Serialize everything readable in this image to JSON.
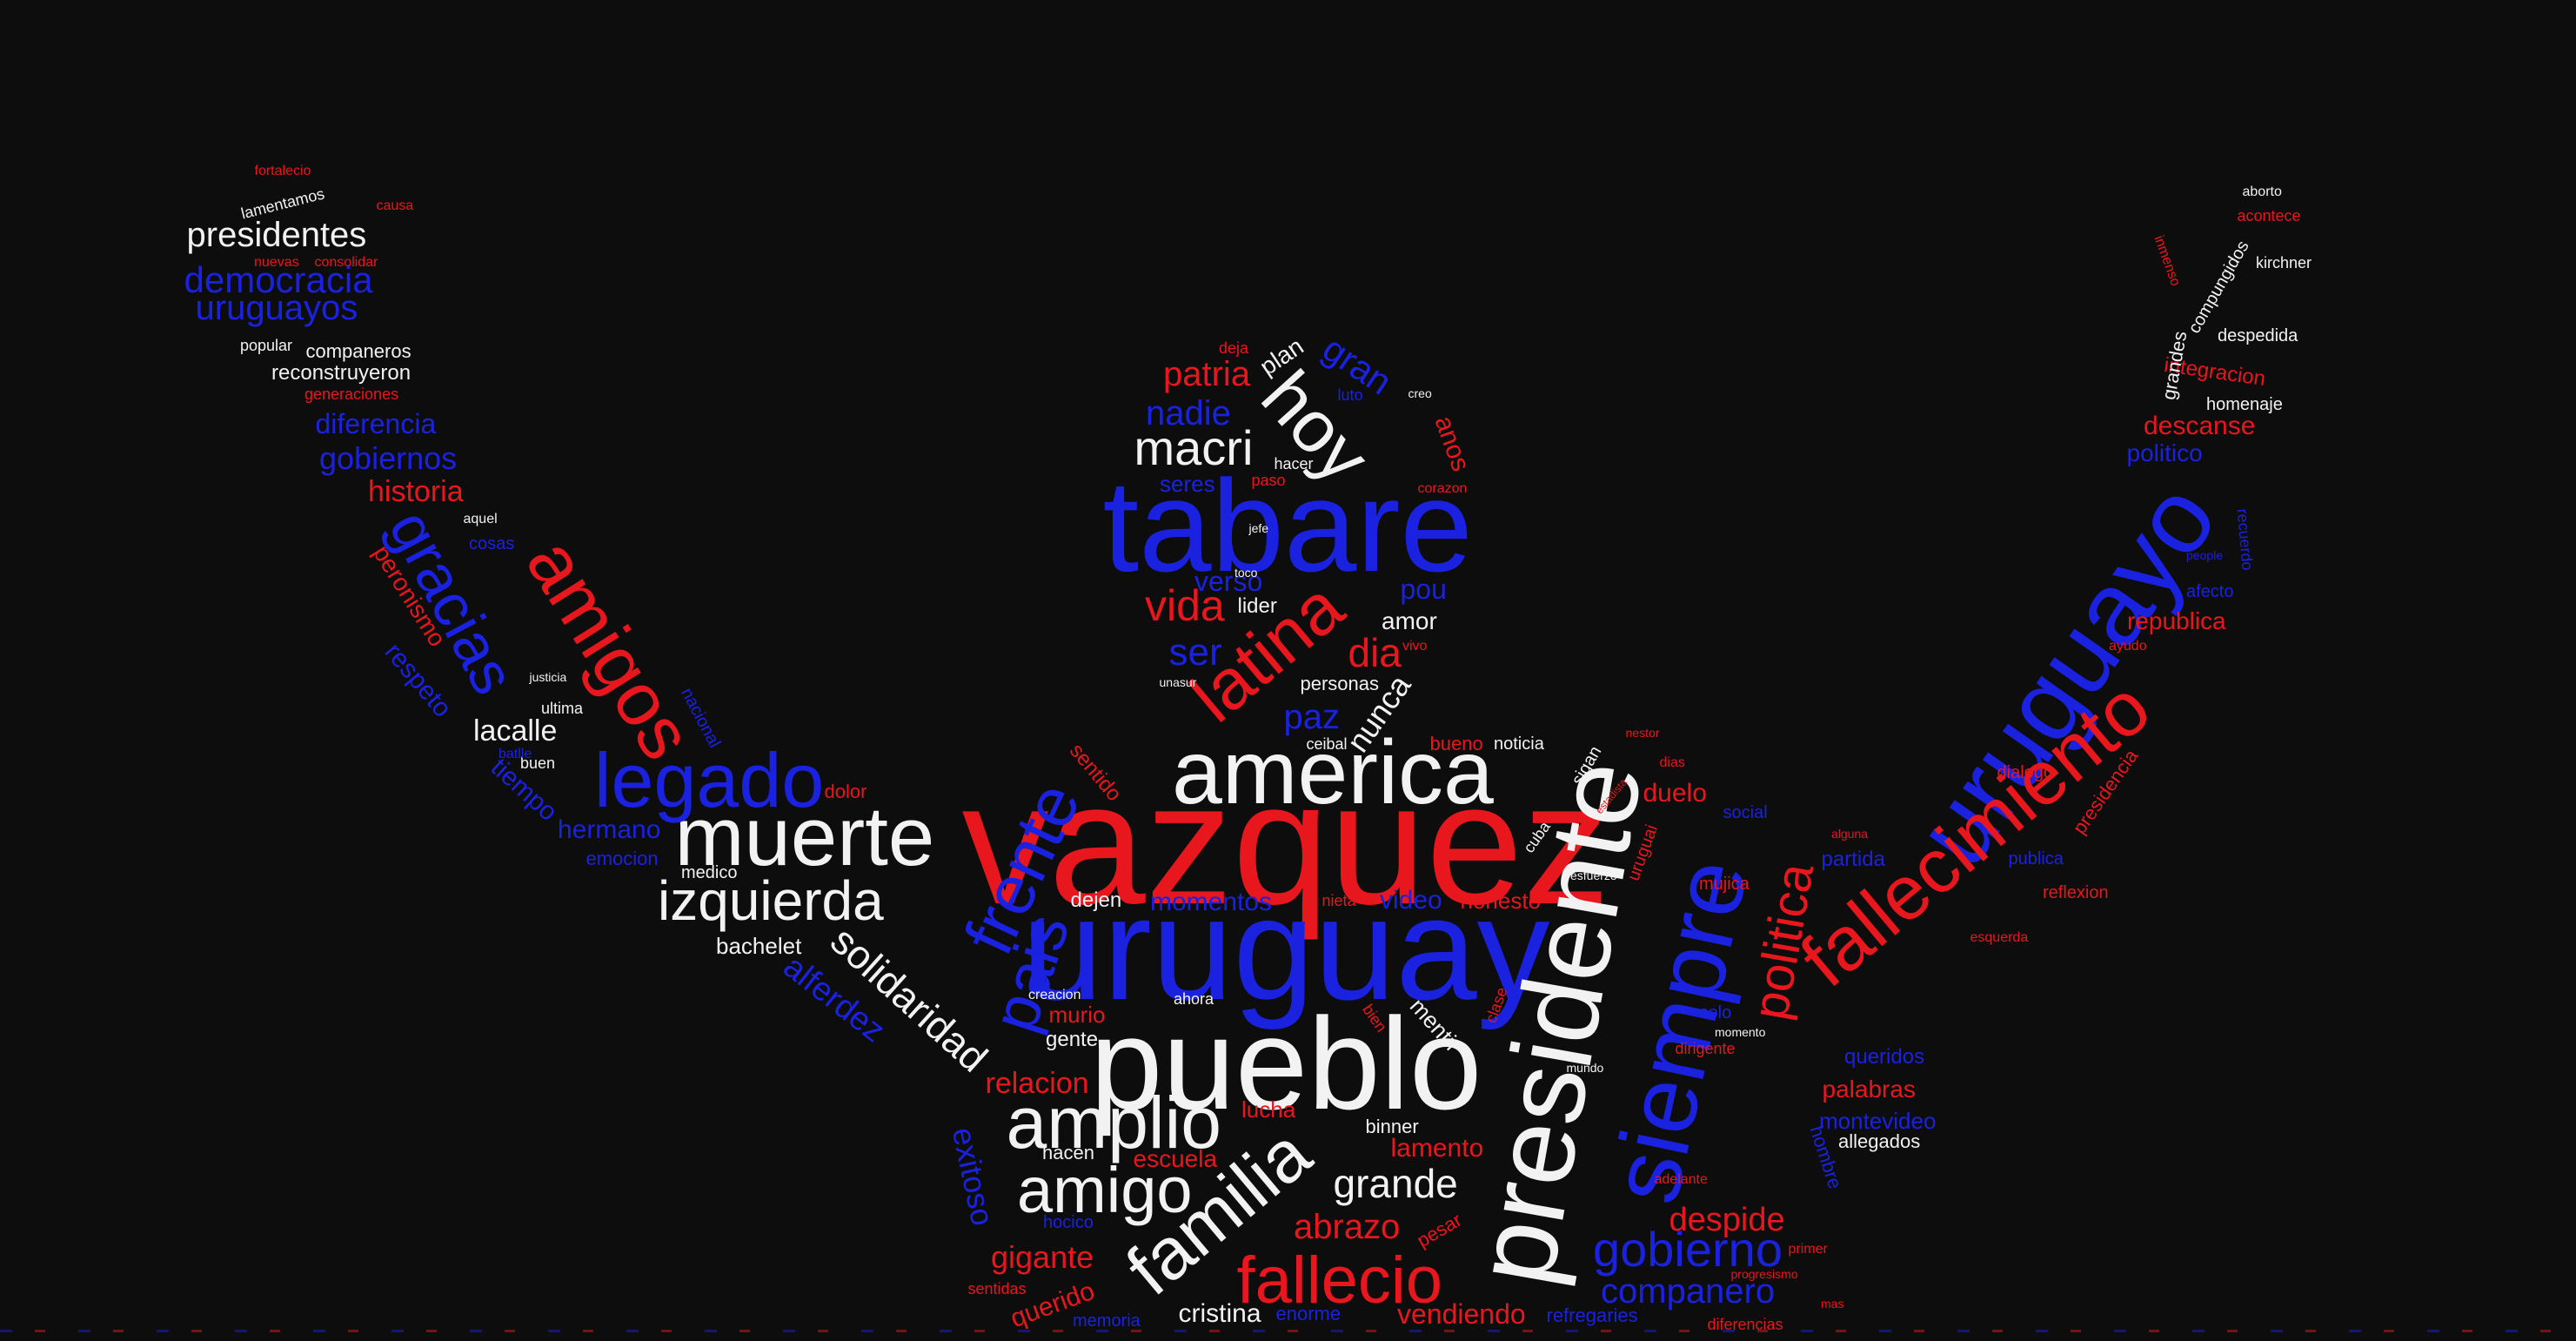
{
  "colors": {
    "background": "#0d0d0d",
    "red": "#e8171d",
    "blue": "#1a22e0",
    "white": "#f2f2f2"
  },
  "words": [
    {
      "id": "vazquez",
      "text": "vazquez",
      "color": "red"
    },
    {
      "id": "uruguay",
      "text": "uruguay",
      "color": "blue"
    },
    {
      "id": "tabare",
      "text": "tabare",
      "color": "blue"
    },
    {
      "id": "america",
      "text": "america",
      "color": "white"
    },
    {
      "id": "pueblo",
      "text": "pueblo",
      "color": "white"
    },
    {
      "id": "presidente",
      "text": "presidente",
      "color": "white"
    },
    {
      "id": "uruguayo",
      "text": "uruguayo",
      "color": "blue"
    },
    {
      "id": "siempre",
      "text": "siempre",
      "color": "blue"
    },
    {
      "id": "fallecimiento",
      "text": "fallecimiento",
      "color": "red"
    },
    {
      "id": "muerte",
      "text": "muerte",
      "color": "white"
    },
    {
      "id": "legado",
      "text": "legado",
      "color": "blue"
    },
    {
      "id": "amigos",
      "text": "amigos",
      "color": "red"
    },
    {
      "id": "gracias",
      "text": "gracias",
      "color": "blue"
    },
    {
      "id": "izquierda",
      "text": "izquierda",
      "color": "white"
    },
    {
      "id": "frente",
      "text": "frente",
      "color": "blue"
    },
    {
      "id": "pais",
      "text": "pais",
      "color": "blue"
    },
    {
      "id": "amplio",
      "text": "amplio",
      "color": "white"
    },
    {
      "id": "familia",
      "text": "familia",
      "color": "white"
    },
    {
      "id": "amigo",
      "text": "amigo",
      "color": "white"
    },
    {
      "id": "fallecio",
      "text": "fallecio",
      "color": "red"
    },
    {
      "id": "latina",
      "text": "latina",
      "color": "red"
    },
    {
      "id": "hoy",
      "text": "hoy",
      "color": "white"
    },
    {
      "id": "macri",
      "text": "macri",
      "color": "white"
    },
    {
      "id": "politica",
      "text": "politica",
      "color": "red"
    },
    {
      "id": "gobierno",
      "text": "gobierno",
      "color": "blue"
    },
    {
      "id": "solidaridad",
      "text": "solidaridad",
      "color": "white"
    },
    {
      "id": "presidentes",
      "text": "presidentes",
      "color": "white"
    },
    {
      "id": "democracia",
      "text": "democracia",
      "color": "blue"
    },
    {
      "id": "uruguayos",
      "text": "uruguayos",
      "color": "blue"
    },
    {
      "id": "diferencia",
      "text": "diferencia",
      "color": "blue"
    },
    {
      "id": "gobiernos",
      "text": "gobiernos",
      "color": "blue"
    },
    {
      "id": "historia",
      "text": "historia",
      "color": "red"
    },
    {
      "id": "peronismo",
      "text": "peronismo",
      "color": "red"
    },
    {
      "id": "respeto",
      "text": "respeto",
      "color": "blue"
    },
    {
      "id": "lacalle",
      "text": "lacalle",
      "color": "white"
    },
    {
      "id": "tiempo",
      "text": "tiempo",
      "color": "blue"
    },
    {
      "id": "hermano",
      "text": "hermano",
      "color": "blue"
    },
    {
      "id": "bachelet",
      "text": "bachelet",
      "color": "white"
    },
    {
      "id": "alferdez",
      "text": "alferdez",
      "color": "blue"
    },
    {
      "id": "grande",
      "text": "grande",
      "color": "white"
    },
    {
      "id": "abrazo",
      "text": "abrazo",
      "color": "red"
    },
    {
      "id": "despide",
      "text": "despide",
      "color": "red"
    },
    {
      "id": "companero",
      "text": "companero",
      "color": "blue"
    },
    {
      "id": "vida",
      "text": "vida",
      "color": "red"
    },
    {
      "id": "patria",
      "text": "patria",
      "color": "red"
    },
    {
      "id": "nadie",
      "text": "nadie",
      "color": "blue"
    },
    {
      "id": "gran",
      "text": "gran",
      "color": "blue"
    },
    {
      "id": "dia",
      "text": "dia",
      "color": "red"
    },
    {
      "id": "paz",
      "text": "paz",
      "color": "blue"
    },
    {
      "id": "ser",
      "text": "ser",
      "color": "blue"
    },
    {
      "id": "verso",
      "text": "verso",
      "color": "blue"
    },
    {
      "id": "amor",
      "text": "amor",
      "color": "white"
    },
    {
      "id": "pou",
      "text": "pou",
      "color": "blue"
    },
    {
      "id": "nunca",
      "text": "nunca",
      "color": "white"
    },
    {
      "id": "cristina",
      "text": "cristina",
      "color": "white"
    },
    {
      "id": "vendiendo",
      "text": "vendiendo",
      "color": "red"
    },
    {
      "id": "refregaries",
      "text": "refregaries",
      "color": "blue"
    },
    {
      "id": "diferencias",
      "text": "diferencias",
      "color": "red"
    },
    {
      "id": "queridos",
      "text": "queridos",
      "color": "blue"
    },
    {
      "id": "palabras",
      "text": "palabras",
      "color": "red"
    },
    {
      "id": "montevideo",
      "text": "montevideo",
      "color": "blue"
    },
    {
      "id": "allegados",
      "text": "allegados",
      "color": "white"
    },
    {
      "id": "gigante",
      "text": "gigante",
      "color": "red"
    },
    {
      "id": "relacion",
      "text": "relacion",
      "color": "red"
    },
    {
      "id": "gente",
      "text": "gente",
      "color": "white"
    },
    {
      "id": "dejen",
      "text": "dejen",
      "color": "white"
    },
    {
      "id": "momentos",
      "text": "momentos",
      "color": "blue"
    },
    {
      "id": "video",
      "text": "video",
      "color": "blue"
    },
    {
      "id": "honesto",
      "text": "honesto",
      "color": "red"
    },
    {
      "id": "lamento",
      "text": "lamento",
      "color": "red"
    },
    {
      "id": "escuela",
      "text": "escuela",
      "color": "red"
    },
    {
      "id": "querido",
      "text": "querido",
      "color": "red"
    },
    {
      "id": "duelo",
      "text": "duelo",
      "color": "red"
    },
    {
      "id": "republica",
      "text": "republica",
      "color": "red"
    },
    {
      "id": "descanse",
      "text": "descanse",
      "color": "red"
    },
    {
      "id": "integracion",
      "text": "integracion",
      "color": "red"
    },
    {
      "id": "despedida",
      "text": "despedida",
      "color": "white"
    },
    {
      "id": "homenaje",
      "text": "homenaje",
      "color": "white"
    },
    {
      "id": "grandes",
      "text": "grandes",
      "color": "white"
    },
    {
      "id": "compungidos",
      "text": "compungidos",
      "color": "white"
    },
    {
      "id": "kirchner",
      "text": "kirchner",
      "color": "white"
    },
    {
      "id": "aborto",
      "text": "aborto",
      "color": "white"
    },
    {
      "id": "acontece",
      "text": "acontece",
      "color": "red"
    },
    {
      "id": "exitoso",
      "text": "exitoso",
      "color": "blue"
    },
    {
      "id": "hacen",
      "text": "hacen",
      "color": "white"
    },
    {
      "id": "murio",
      "text": "murio",
      "color": "red"
    },
    {
      "id": "mentir",
      "text": "mentir",
      "color": "white"
    },
    {
      "id": "lucha",
      "text": "lucha",
      "color": "red"
    },
    {
      "id": "binner",
      "text": "binner",
      "color": "white"
    },
    {
      "id": "personas",
      "text": "personas",
      "color": "white"
    },
    {
      "id": "lider",
      "text": "lider",
      "color": "white"
    },
    {
      "id": "seres",
      "text": "seres",
      "color": "blue"
    },
    {
      "id": "plan",
      "text": "plan",
      "color": "white"
    },
    {
      "id": "dolor",
      "text": "dolor",
      "color": "red"
    },
    {
      "id": "emocion",
      "text": "emocion",
      "color": "blue"
    },
    {
      "id": "medico",
      "text": "medico",
      "color": "white"
    },
    {
      "id": "reconstruyeron",
      "text": "reconstruyeron",
      "color": "white"
    },
    {
      "id": "companeros",
      "text": "companeros",
      "color": "white"
    },
    {
      "id": "popular",
      "text": "popular",
      "color": "white"
    },
    {
      "id": "lamentamos",
      "text": "lamentamos",
      "color": "white"
    },
    {
      "id": "fortalecio",
      "text": "fortalecio",
      "color": "red"
    },
    {
      "id": "cosas",
      "text": "cosas",
      "color": "blue"
    },
    {
      "id": "sentido",
      "text": "sentido",
      "color": "red"
    },
    {
      "id": "partida",
      "text": "partida",
      "color": "blue"
    },
    {
      "id": "reflexion",
      "text": "reflexion",
      "color": "red"
    },
    {
      "id": "publica",
      "text": "publica",
      "color": "blue"
    },
    {
      "id": "presidencia",
      "text": "presidencia",
      "color": "red"
    },
    {
      "id": "dialogo",
      "text": "dialogo",
      "color": "red"
    },
    {
      "id": "afecto",
      "text": "afecto",
      "color": "blue"
    },
    {
      "id": "social",
      "text": "social",
      "color": "blue"
    },
    {
      "id": "mujica",
      "text": "mujica",
      "color": "red"
    },
    {
      "id": "memoria",
      "text": "memoria",
      "color": "blue"
    },
    {
      "id": "pesar",
      "text": "pesar",
      "color": "red"
    },
    {
      "id": "dirigente",
      "text": "dirigente",
      "color": "red"
    },
    {
      "id": "bueno",
      "text": "bueno",
      "color": "red"
    },
    {
      "id": "noticia",
      "text": "noticia",
      "color": "white"
    },
    {
      "id": "buen",
      "text": "buen",
      "color": "white"
    },
    {
      "id": "ultima",
      "text": "ultima",
      "color": "white"
    },
    {
      "id": "aquel",
      "text": "aquel",
      "color": "white"
    },
    {
      "id": "causa",
      "text": "causa",
      "color": "red"
    },
    {
      "id": "consolidar",
      "text": "consolidar",
      "color": "red"
    },
    {
      "id": "nuevas",
      "text": "nuevas",
      "color": "red"
    },
    {
      "id": "generaciones",
      "text": "generaciones",
      "color": "red"
    },
    {
      "id": "nacional",
      "text": "nacional",
      "color": "blue"
    },
    {
      "id": "hombre",
      "text": "hombre",
      "color": "blue"
    },
    {
      "id": "solo",
      "text": "solo",
      "color": "blue"
    },
    {
      "id": "politico",
      "text": "politico",
      "color": "blue"
    },
    {
      "id": "creo",
      "text": "creo",
      "color": "white"
    },
    {
      "id": "deja",
      "text": "deja",
      "color": "red"
    },
    {
      "id": "luto",
      "text": "luto",
      "color": "blue"
    },
    {
      "id": "hacer",
      "text": "hacer",
      "color": "white"
    },
    {
      "id": "paso",
      "text": "paso",
      "color": "red"
    },
    {
      "id": "corazon",
      "text": "corazon",
      "color": "red"
    },
    {
      "id": "anos",
      "text": "anos",
      "color": "red"
    },
    {
      "id": "adelante",
      "text": "adelante",
      "color": "red"
    },
    {
      "id": "vivo",
      "text": "vivo",
      "color": "red"
    },
    {
      "id": "cuba",
      "text": "cuba",
      "color": "white"
    },
    {
      "id": "ceibal",
      "text": "ceibal",
      "color": "white"
    },
    {
      "id": "sigan",
      "text": "sigan",
      "color": "white"
    },
    {
      "id": "uruguai",
      "text": "uruguai",
      "color": "red"
    },
    {
      "id": "recuerdo",
      "text": "recuerdo",
      "color": "blue"
    },
    {
      "id": "ayudo",
      "text": "ayudo",
      "color": "red"
    },
    {
      "id": "esquerda",
      "text": "esquerda",
      "color": "red"
    },
    {
      "id": "primer",
      "text": "primer",
      "color": "red"
    },
    {
      "id": "progresismo",
      "text": "progresismo",
      "color": "red"
    },
    {
      "id": "justicia",
      "text": "justicia",
      "color": "white"
    },
    {
      "id": "momento",
      "text": "momento",
      "color": "white"
    },
    {
      "id": "mundo",
      "text": "mundo",
      "color": "white"
    },
    {
      "id": "esfuerzo",
      "text": "esfuerzo",
      "color": "white"
    },
    {
      "id": "toco",
      "text": "toco",
      "color": "white"
    },
    {
      "id": "jefe",
      "text": "jefe",
      "color": "white"
    },
    {
      "id": "ahora",
      "text": "ahora",
      "color": "white"
    },
    {
      "id": "creacion",
      "text": "creacion",
      "color": "white"
    },
    {
      "id": "nieta",
      "text": "nieta",
      "color": "red"
    },
    {
      "id": "hocico",
      "text": "hocico",
      "color": "blue"
    },
    {
      "id": "sentidas",
      "text": "sentidas",
      "color": "red"
    },
    {
      "id": "bien",
      "text": "bien",
      "color": "red"
    },
    {
      "id": "clase",
      "text": "clase",
      "color": "red"
    },
    {
      "id": "alguna",
      "text": "alguna",
      "color": "red"
    },
    {
      "id": "dias",
      "text": "dias",
      "color": "red"
    },
    {
      "id": "nestor",
      "text": "nestor",
      "color": "red"
    },
    {
      "id": "estadista",
      "text": "estadista",
      "color": "red"
    },
    {
      "id": "people",
      "text": "people",
      "color": "blue"
    },
    {
      "id": "inmenso",
      "text": "inmenso",
      "color": "red"
    },
    {
      "id": "unasur",
      "text": "unasur",
      "color": "white"
    },
    {
      "id": "batlle",
      "text": "batlle",
      "color": "blue"
    },
    {
      "id": "enorme",
      "text": "enorme",
      "color": "blue"
    },
    {
      "id": "mas",
      "text": "mas",
      "color": "red"
    }
  ]
}
